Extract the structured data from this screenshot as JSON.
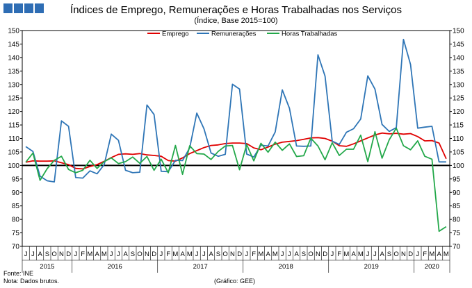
{
  "header": {
    "title": "Índices de Emprego, Remunerações e Horas Trabalhadas nos Serviços",
    "subtitle": "(Índice, Base 2015=100)"
  },
  "footer": {
    "source": "Fonte: INE",
    "note": "Nota: Dados brutos.",
    "credit": "(Gráfico: GEE)"
  },
  "colors": {
    "logo": "#2e6db4",
    "emprego": "#e00000",
    "remuneracoes": "#2e75b6",
    "horas": "#23a84a",
    "baseline": "#000000"
  },
  "chart_data": {
    "type": "line",
    "ylim": [
      70,
      150
    ],
    "yticks": [
      70,
      75,
      80,
      85,
      90,
      95,
      100,
      105,
      110,
      115,
      120,
      125,
      130,
      135,
      140,
      145,
      150
    ],
    "baseline": 100,
    "legend_position": "top",
    "month_labels": [
      "J",
      "J",
      "A",
      "S",
      "O",
      "N",
      "D",
      "J",
      "F",
      "M",
      "A",
      "M",
      "J",
      "J",
      "A",
      "S",
      "O",
      "N",
      "D",
      "J",
      "F",
      "M",
      "A",
      "M",
      "J",
      "J",
      "A",
      "S",
      "O",
      "N",
      "D",
      "J",
      "F",
      "M",
      "A",
      "M",
      "J",
      "J",
      "A",
      "S",
      "O",
      "N",
      "D",
      "J",
      "F",
      "M",
      "A",
      "M",
      "J",
      "J",
      "A",
      "S",
      "O",
      "N",
      "D",
      "J",
      "F",
      "M",
      "A",
      "M"
    ],
    "years": [
      {
        "label": "2015",
        "start": 0,
        "count": 7
      },
      {
        "label": "2016",
        "start": 7,
        "count": 12
      },
      {
        "label": "2017",
        "start": 19,
        "count": 12
      },
      {
        "label": "2018",
        "start": 31,
        "count": 12
      },
      {
        "label": "2019",
        "start": 43,
        "count": 12
      },
      {
        "label": "2020",
        "start": 55,
        "count": 5
      }
    ],
    "series": [
      {
        "name": "Emprego",
        "color": "#e00000",
        "values": [
          101.2,
          101.7,
          101.6,
          101.6,
          101.7,
          101.0,
          100.3,
          98.9,
          98.7,
          99.6,
          100.3,
          101.5,
          102.9,
          104.1,
          104.3,
          104.1,
          104.4,
          103.9,
          103.7,
          103.4,
          101.8,
          101.6,
          102.8,
          104.4,
          105.5,
          106.6,
          107.4,
          107.6,
          108.1,
          108.3,
          108.3,
          108.1,
          106.5,
          105.8,
          106.8,
          107.9,
          108.6,
          108.9,
          109.2,
          109.7,
          110.2,
          110.3,
          110.0,
          109.0,
          107.3,
          107.1,
          108.0,
          109.1,
          110.2,
          111.3,
          112.0,
          111.7,
          111.9,
          111.6,
          111.8,
          110.7,
          109.1,
          109.2,
          108.3,
          102.5
        ]
      },
      {
        "name": "Remunerações",
        "color": "#2e75b6",
        "values": [
          107.0,
          105.2,
          96.0,
          94.3,
          93.9,
          116.5,
          114.5,
          95.5,
          95.3,
          98.0,
          96.9,
          100.3,
          111.6,
          109.3,
          98.2,
          97.3,
          97.5,
          122.4,
          118.9,
          97.8,
          97.7,
          101.9,
          101.8,
          106.5,
          119.4,
          113.6,
          104.6,
          103.4,
          104.1,
          130.1,
          128.3,
          104.2,
          103.1,
          107.5,
          107.2,
          112.4,
          128.0,
          121.2,
          107.2,
          107.1,
          107.2,
          141.0,
          133.1,
          109.0,
          107.8,
          112.3,
          113.6,
          117.2,
          133.2,
          128.3,
          115.2,
          112.6,
          114.0,
          146.7,
          137.4,
          113.8,
          114.2,
          114.5,
          101.3,
          101.3
        ]
      },
      {
        "name": "Horas Trabalhadas",
        "color": "#23a84a",
        "values": [
          101.2,
          104.6,
          94.5,
          98.8,
          101.9,
          103.4,
          98.5,
          97.3,
          98.2,
          101.9,
          98.9,
          101.4,
          102.8,
          100.7,
          101.4,
          103.1,
          100.8,
          103.3,
          98.2,
          102.3,
          97.3,
          107.4,
          96.7,
          107.3,
          104.4,
          104.2,
          102.2,
          105.2,
          107.2,
          107.4,
          98.4,
          107.7,
          101.7,
          108.2,
          104.9,
          108.6,
          105.6,
          108.0,
          103.3,
          103.6,
          110.1,
          107.2,
          102.1,
          108.4,
          103.7,
          106.0,
          106.0,
          111.2,
          101.4,
          112.5,
          102.7,
          109.5,
          113.8,
          107.3,
          105.8,
          109.1,
          103.4,
          102.3,
          75.6,
          77.3
        ]
      }
    ]
  }
}
